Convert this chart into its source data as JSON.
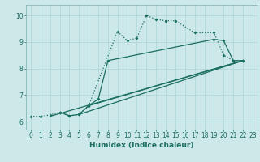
{
  "xlabel": "Humidex (Indice chaleur)",
  "xlim": [
    -0.5,
    23.5
  ],
  "ylim": [
    5.7,
    10.4
  ],
  "bg_color": "#cce8e8",
  "line_color": "#1a6e5e",
  "grid_color": "#b0d8d8",
  "xticks": [
    0,
    1,
    2,
    3,
    4,
    5,
    6,
    7,
    8,
    9,
    10,
    11,
    12,
    13,
    14,
    15,
    16,
    17,
    18,
    19,
    20,
    21,
    22,
    23
  ],
  "yticks": [
    6,
    7,
    8,
    9,
    10
  ],
  "tick_fontsize": 5.5,
  "label_fontsize": 6.5,
  "line1_x": [
    0,
    1,
    2,
    3,
    4,
    5,
    6,
    9,
    10,
    11,
    12,
    13,
    14,
    15,
    17,
    19,
    20,
    21,
    22
  ],
  "line1_y": [
    6.2,
    6.2,
    6.25,
    6.35,
    6.22,
    6.27,
    6.6,
    9.4,
    9.05,
    9.15,
    10.0,
    9.85,
    9.8,
    9.8,
    9.35,
    9.35,
    8.5,
    8.3,
    8.3
  ],
  "line2_x": [
    3,
    4,
    5,
    6,
    7,
    8,
    19,
    20,
    21,
    22
  ],
  "line2_y": [
    6.35,
    6.22,
    6.27,
    6.6,
    6.85,
    8.3,
    9.1,
    9.05,
    8.3,
    8.3
  ],
  "line3_x": [
    2,
    22
  ],
  "line3_y": [
    6.2,
    8.3
  ],
  "line4_x": [
    5,
    22
  ],
  "line4_y": [
    6.27,
    8.3
  ],
  "line5_x": [
    6,
    22
  ],
  "line5_y": [
    6.6,
    8.3
  ]
}
